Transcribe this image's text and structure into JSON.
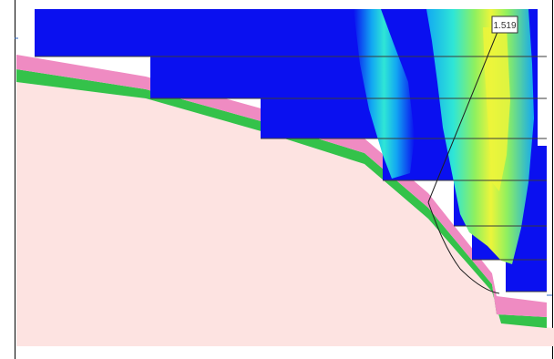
{
  "figure": {
    "safety_factor_label": "1.519",
    "colors": {
      "slope_body": "#fde3e1",
      "surface_pink_layer": "#ef8bc2",
      "surface_green_layer": "#34c24a",
      "contour_base": "#0a10f0",
      "contour_cyan": "#12a8f2",
      "contour_aqua": "#2fe6d6",
      "contour_green": "#8ff05f",
      "contour_yellow": "#ecf53b",
      "bench_line": "#3a3a3a",
      "slip_circle": "#1f1f1f",
      "frame_border": "#000000"
    },
    "elements": [
      "slope-profile",
      "surface-layers",
      "stress-contour-field",
      "bench-lines",
      "critical-slip-circle",
      "safety-factor-label"
    ]
  }
}
